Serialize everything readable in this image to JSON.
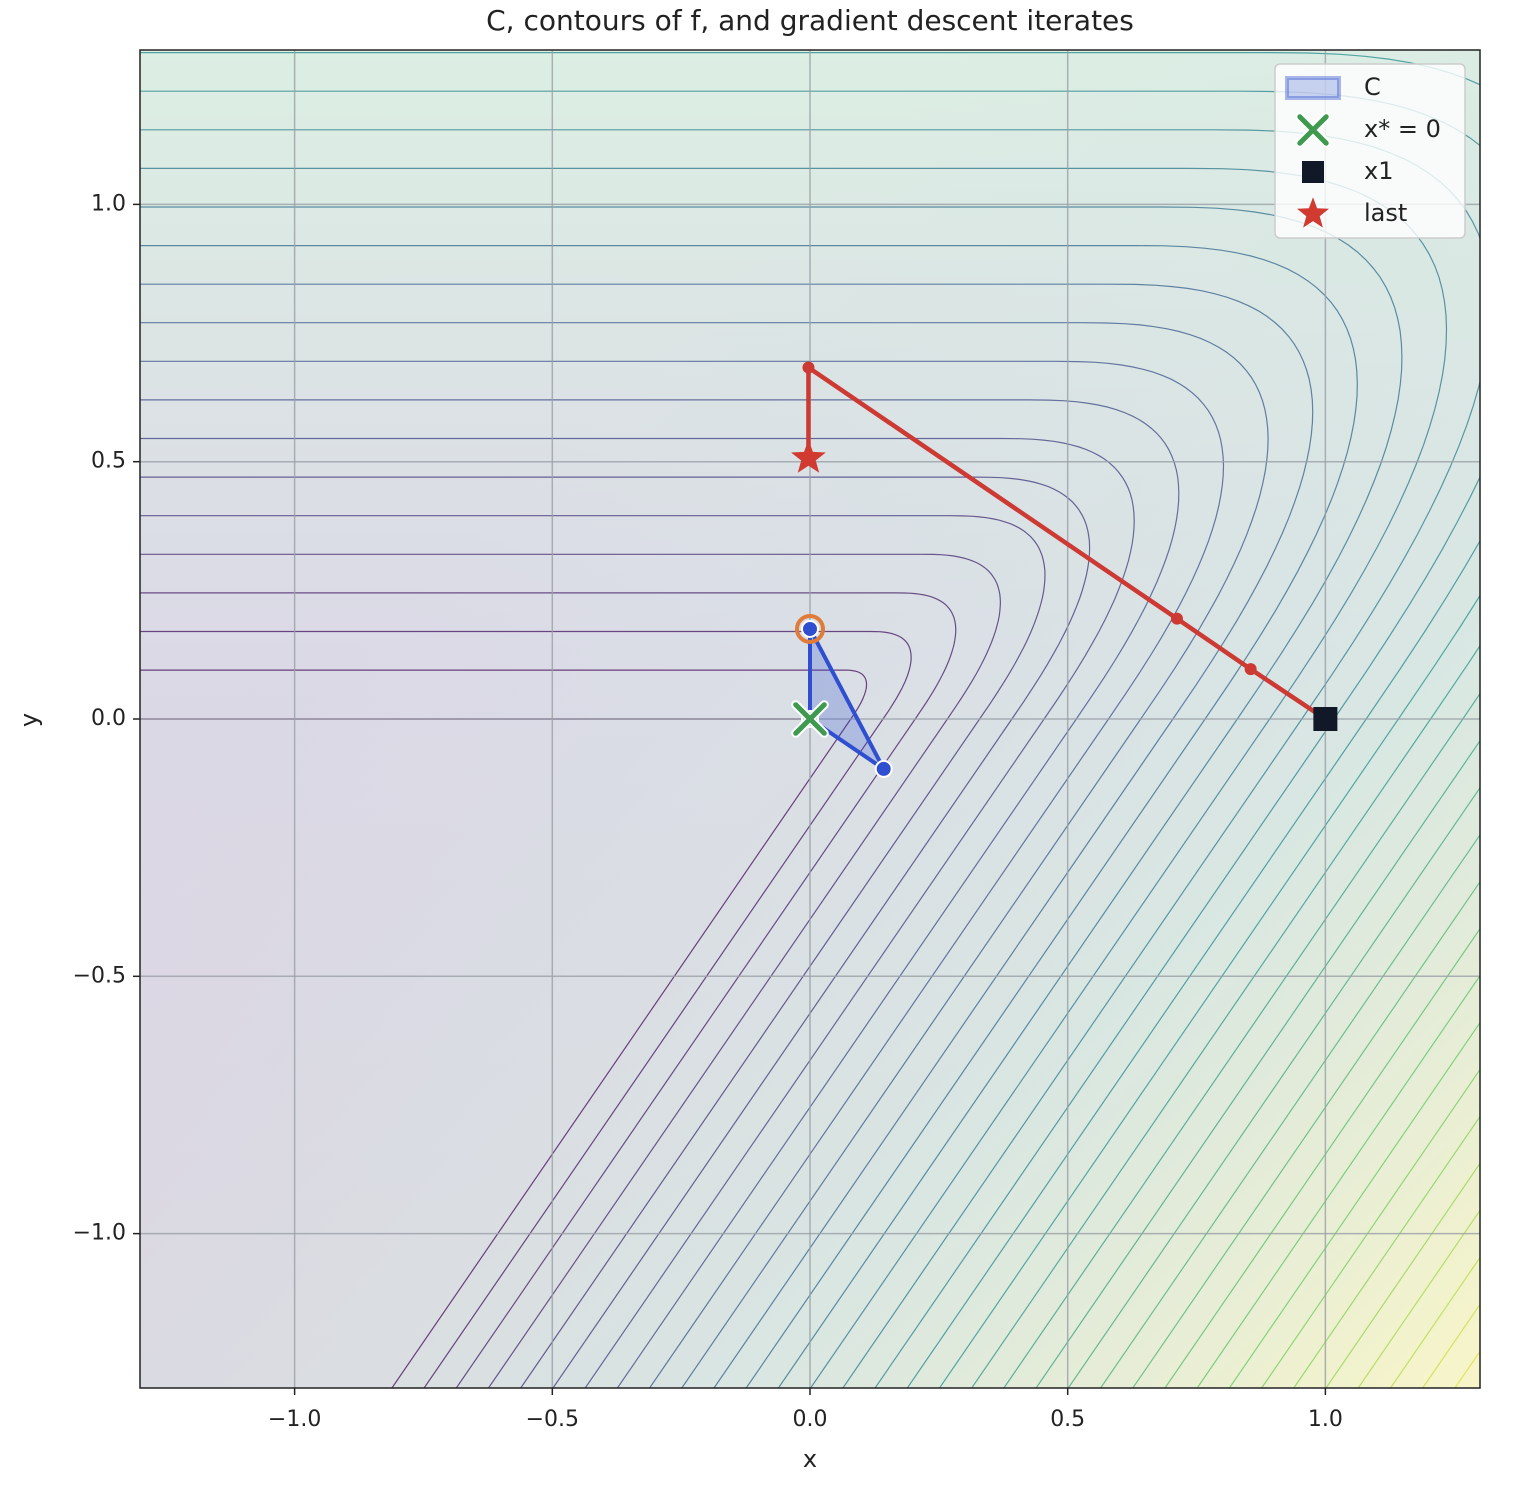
{
  "chart_data": {
    "type": "contour",
    "title": "C, contours of f, and gradient descent iterates",
    "xlabel": "x",
    "ylabel": "y",
    "xlim": [
      -1.3,
      1.3
    ],
    "ylim": [
      -1.3,
      1.3
    ],
    "xticks": [
      {
        "value": -1.0,
        "label": "−1.0"
      },
      {
        "value": -0.5,
        "label": "−0.5"
      },
      {
        "value": 0.0,
        "label": "0.0"
      },
      {
        "value": 0.5,
        "label": "0.5"
      },
      {
        "value": 1.0,
        "label": "1.0"
      }
    ],
    "yticks": [
      {
        "value": -1.0,
        "label": "−1.0"
      },
      {
        "value": -0.5,
        "label": "−0.5"
      },
      {
        "value": 0.0,
        "label": "0.0"
      },
      {
        "value": 0.5,
        "label": "0.5"
      },
      {
        "value": 1.0,
        "label": "1.0"
      }
    ],
    "grid": true,
    "legend": "upper right",
    "region": {
      "name": "C",
      "color": "#2f4fd0",
      "x": [
        0.0,
        0.0,
        0.143
      ],
      "y": [
        0.0,
        0.175,
        -0.097
      ]
    },
    "highlight": {
      "color": "#e07b39",
      "x": 0.0,
      "y": 0.175
    },
    "iterates": {
      "color": "#cc3a33",
      "x": [
        1.0,
        0.855,
        0.712,
        -0.003,
        -0.003
      ],
      "y": [
        0.0,
        0.097,
        0.195,
        0.683,
        0.507
      ]
    },
    "markers": [
      {
        "name": "x* = 0",
        "marker": "x",
        "color": "#3f9a4f",
        "x": 0.0,
        "y": 0.0
      },
      {
        "name": "x1",
        "marker": "square",
        "color": "#111827",
        "x": 1.0,
        "y": 0.0
      },
      {
        "name": "last",
        "marker": "star",
        "color": "#d03a30",
        "x": -0.003,
        "y": 0.507
      }
    ]
  }
}
